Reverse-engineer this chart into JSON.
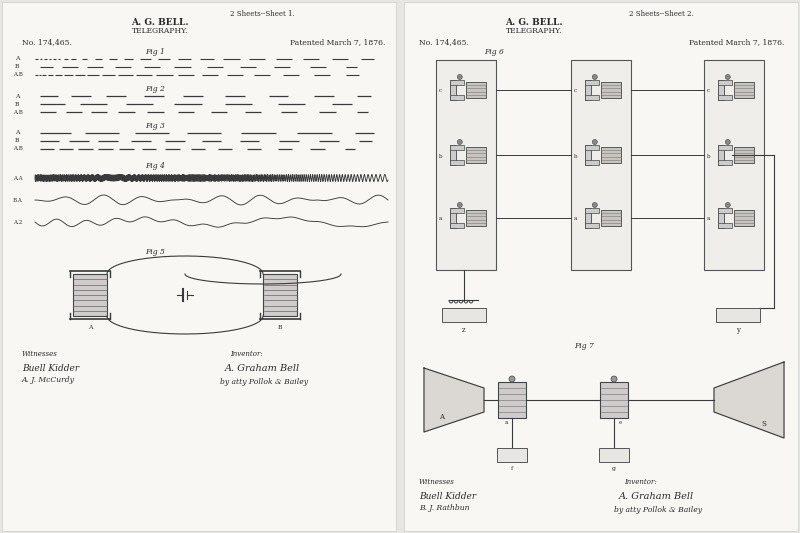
{
  "background_color": "#e8e6e2",
  "left_bg": "#f5f4f1",
  "right_bg": "#f5f4f1",
  "fig_width": 8.0,
  "fig_height": 5.33,
  "left_sheet": {
    "header_top": "2 Sheets--Sheet 1.",
    "title1": "A. G. BELL.",
    "title2": "TELEGRAPHY.",
    "patent_no": "No. 174,465.",
    "patented": "Patented March 7, 1876."
  },
  "right_sheet": {
    "header_top": "2 Sheets--Sheet 2.",
    "title1": "A. G. BELL.",
    "title2": "TELEGRAPHY.",
    "patent_no": "No. 174,465.",
    "patented": "Patented March 7, 1876."
  },
  "text_color": "#2a2a2a",
  "line_color": "#3a3a3a",
  "wave_color": "#3a3a3a",
  "light_gray": "#aaaaaa",
  "mid_gray": "#888888",
  "dark_gray": "#555555"
}
